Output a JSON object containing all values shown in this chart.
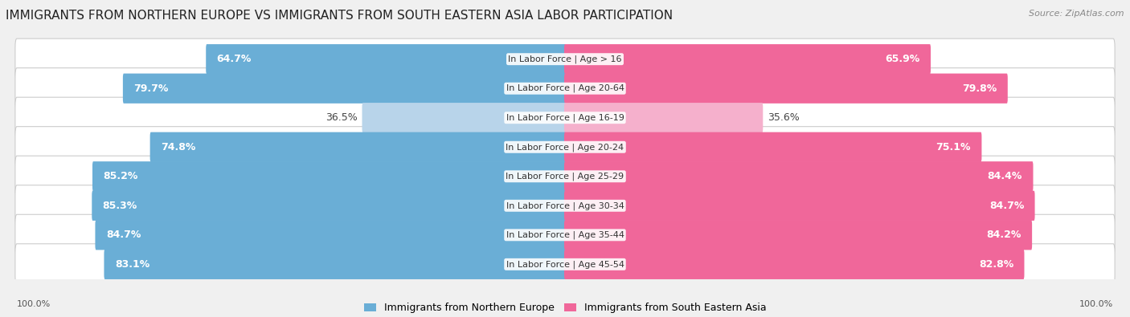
{
  "title": "IMMIGRANTS FROM NORTHERN EUROPE VS IMMIGRANTS FROM SOUTH EASTERN ASIA LABOR PARTICIPATION",
  "source": "Source: ZipAtlas.com",
  "categories": [
    "In Labor Force | Age > 16",
    "In Labor Force | Age 20-64",
    "In Labor Force | Age 16-19",
    "In Labor Force | Age 20-24",
    "In Labor Force | Age 25-29",
    "In Labor Force | Age 30-34",
    "In Labor Force | Age 35-44",
    "In Labor Force | Age 45-54"
  ],
  "left_values": [
    64.7,
    79.7,
    36.5,
    74.8,
    85.2,
    85.3,
    84.7,
    83.1
  ],
  "right_values": [
    65.9,
    79.8,
    35.6,
    75.1,
    84.4,
    84.7,
    84.2,
    82.8
  ],
  "left_color": "#6aaed6",
  "left_color_light": "#b8d4ea",
  "right_color": "#f0679a",
  "right_color_light": "#f5b0cc",
  "label_left": "Immigrants from Northern Europe",
  "label_right": "Immigrants from South Eastern Asia",
  "background_color": "#f0f0f0",
  "row_bg_color": "#e8e8e8",
  "bar_bg_color": "#ffffff",
  "max_value": 100.0,
  "title_fontsize": 11,
  "bar_label_fontsize": 9,
  "category_fontsize": 8,
  "axis_label_fontsize": 8
}
